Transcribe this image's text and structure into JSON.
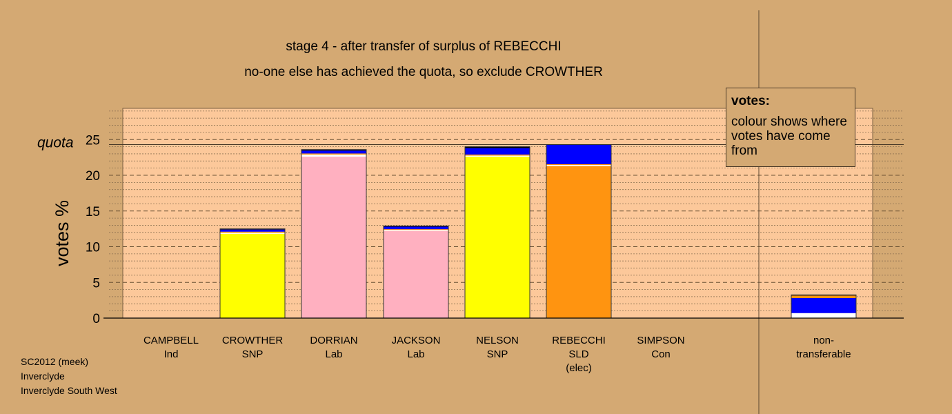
{
  "titles": {
    "line1": "stage 4 - after transfer of surplus of REBECCHI",
    "line2": "no-one else has achieved the quota, so exclude CROWTHER"
  },
  "legend": {
    "heading": "votes:",
    "text": "colour shows where votes have come from"
  },
  "footer": [
    "SC2012 (meek)",
    "Inverclyde",
    "Inverclyde South West"
  ],
  "colors": {
    "page_bg": "#d4a973",
    "plot_bg": "#fcc89a",
    "snp": "#ffff00",
    "lab": "#ffb0c0",
    "sld": "#ff9410",
    "transfer": "#0000ff",
    "nontransferable_base": "#ffffff",
    "thin_white": "#ffffff",
    "thin_orange": "#ff9410",
    "thin_black": "#000000"
  },
  "chart_data": {
    "type": "bar",
    "stacked": true,
    "ylabel": "votes %",
    "ylim": [
      0,
      29.5
    ],
    "yticks": [
      0,
      5,
      10,
      15,
      20,
      25
    ],
    "quota_label": "quota",
    "quota": 24.3,
    "grid": "dashed major every 5, dotted minor every 1",
    "categories": [
      {
        "name": "CAMPBELL",
        "party": "Ind",
        "note": "",
        "segments": []
      },
      {
        "name": "CROWTHER",
        "party": "SNP",
        "note": "",
        "segments": [
          {
            "source": "first preferences",
            "color": "snp",
            "value": 11.8
          },
          {
            "source": "white",
            "color": "thin_white",
            "value": 0.15
          },
          {
            "source": "orange",
            "color": "thin_orange",
            "value": 0.15
          },
          {
            "source": "blue",
            "color": "transfer",
            "value": 0.3
          },
          {
            "source": "black",
            "color": "thin_black",
            "value": 0.1
          }
        ]
      },
      {
        "name": "DORRIAN",
        "party": "Lab",
        "note": "",
        "segments": [
          {
            "source": "first preferences",
            "color": "lab",
            "value": 22.6
          },
          {
            "source": "white",
            "color": "thin_white",
            "value": 0.3
          },
          {
            "source": "orange",
            "color": "thin_orange",
            "value": 0.15
          },
          {
            "source": "blue",
            "color": "transfer",
            "value": 0.4
          },
          {
            "source": "black",
            "color": "thin_black",
            "value": 0.15
          }
        ]
      },
      {
        "name": "JACKSON",
        "party": "Lab",
        "note": "",
        "segments": [
          {
            "source": "first preferences",
            "color": "lab",
            "value": 12.2
          },
          {
            "source": "white",
            "color": "thin_white",
            "value": 0.15
          },
          {
            "source": "orange",
            "color": "thin_orange",
            "value": 0.1
          },
          {
            "source": "blue",
            "color": "transfer",
            "value": 0.35
          },
          {
            "source": "black",
            "color": "thin_black",
            "value": 0.1
          }
        ]
      },
      {
        "name": "NELSON",
        "party": "SNP",
        "note": "",
        "segments": [
          {
            "source": "first preferences",
            "color": "snp",
            "value": 22.6
          },
          {
            "source": "white",
            "color": "thin_white",
            "value": 0.15
          },
          {
            "source": "orange",
            "color": "thin_orange",
            "value": 0.15
          },
          {
            "source": "blue",
            "color": "transfer",
            "value": 0.9
          },
          {
            "source": "black",
            "color": "thin_black",
            "value": 0.2
          }
        ]
      },
      {
        "name": "REBECCHI",
        "party": "SLD",
        "note": "(elec)",
        "segments": [
          {
            "source": "first preferences",
            "color": "sld",
            "value": 21.3
          },
          {
            "source": "white",
            "color": "thin_white",
            "value": 0.15
          },
          {
            "source": "orange",
            "color": "thin_orange",
            "value": 0.1
          },
          {
            "source": "blue",
            "color": "transfer",
            "value": 2.75
          }
        ]
      },
      {
        "name": "SIMPSON",
        "party": "Con",
        "note": "",
        "segments": []
      }
    ],
    "nontransferable": {
      "label": [
        "non-",
        "transferable"
      ],
      "segments": [
        {
          "source": "white",
          "color": "nontransferable_base",
          "value": 0.7
        },
        {
          "source": "blue",
          "color": "transfer",
          "value": 2.1
        },
        {
          "source": "orange",
          "color": "thin_orange",
          "value": 0.35
        },
        {
          "source": "black",
          "color": "thin_black",
          "value": 0.1
        }
      ]
    }
  }
}
